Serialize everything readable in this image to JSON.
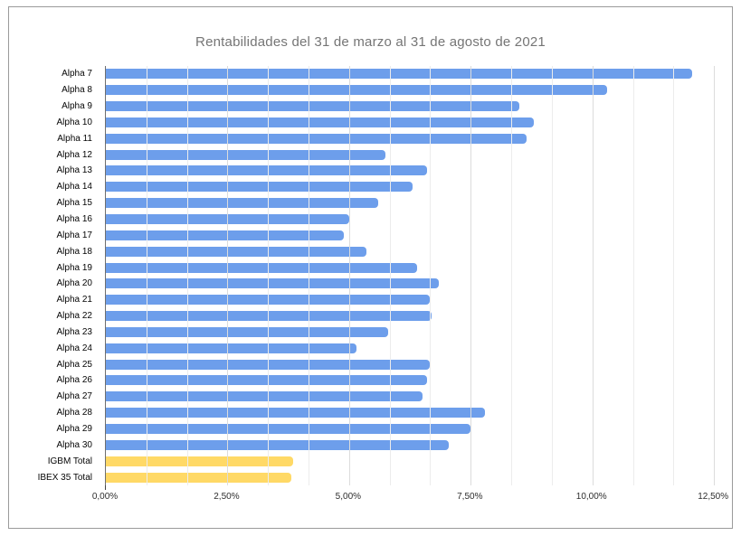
{
  "window": {
    "background": "#ffffff",
    "border_color": "#9b9b9b"
  },
  "chart_data": {
    "type": "bar",
    "orientation": "horizontal",
    "title": "Rentabilidades del 31 de marzo al 31 de agosto de 2021",
    "title_color": "#757575",
    "legend": "none",
    "grid": true,
    "categories": [
      "Alpha 7",
      "Alpha 8",
      "Alpha 9",
      "Alpha 10",
      "Alpha 11",
      "Alpha 12",
      "Alpha 13",
      "Alpha 14",
      "Alpha 15",
      "Alpha 16",
      "Alpha 17",
      "Alpha 18",
      "Alpha 19",
      "Alpha 20",
      "Alpha 21",
      "Alpha 22",
      "Alpha 23",
      "Alpha 24",
      "Alpha 25",
      "Alpha 26",
      "Alpha 27",
      "Alpha 28",
      "Alpha 29",
      "Alpha 30",
      "IGBM Total",
      "IBEX 35 Total"
    ],
    "values": [
      12.05,
      10.3,
      8.5,
      8.8,
      8.65,
      5.75,
      6.6,
      6.3,
      5.6,
      5.0,
      4.9,
      5.35,
      6.4,
      6.85,
      6.65,
      6.7,
      5.8,
      5.15,
      6.65,
      6.6,
      6.5,
      7.8,
      7.5,
      7.05,
      3.85,
      3.82
    ],
    "value_unit": "%",
    "series_color_default": "#6d9eeb",
    "series_color_highlight": "#ffd966",
    "highlight_categories": [
      "IGBM Total",
      "IBEX 35 Total"
    ],
    "xlabel": "",
    "ylabel": "",
    "xlim": [
      0,
      12.72
    ],
    "x_axis": {
      "tick_labels": [
        "0,00%",
        "2,50%",
        "5,00%",
        "7,50%",
        "10,00%",
        "12,50%"
      ],
      "tick_values": [
        0,
        2.5,
        5,
        7.5,
        10,
        12.5
      ],
      "minor_gridline_step": 0.8333,
      "major_gridline_step": 2.5,
      "minor_gridline_color": "#ececec",
      "major_gridline_color": "#dcdcdc",
      "axis_line_color": "#6f6f6f",
      "label_color": "#2e2e2e"
    }
  }
}
